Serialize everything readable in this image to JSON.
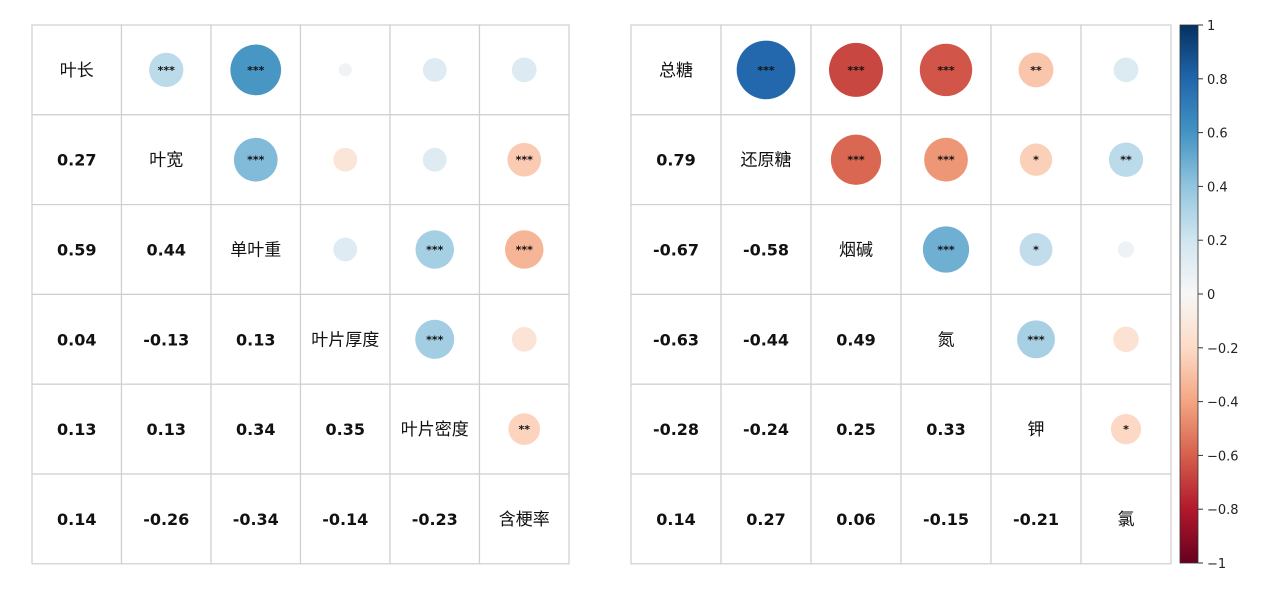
{
  "chart_data": [
    {
      "type": "heatmap",
      "variables": [
        "叶长",
        "叶宽",
        "单叶重",
        "叶片厚度",
        "叶片密度",
        "含梗率"
      ],
      "correlations": [
        [
          1,
          0.27,
          0.59,
          0.04,
          0.13,
          0.14
        ],
        [
          0.27,
          1,
          0.44,
          -0.13,
          0.13,
          -0.26
        ],
        [
          0.59,
          0.44,
          1,
          0.13,
          0.34,
          -0.34
        ],
        [
          0.04,
          -0.13,
          0.13,
          1,
          0.35,
          -0.14
        ],
        [
          0.13,
          0.13,
          0.34,
          0.35,
          1,
          -0.23
        ],
        [
          0.14,
          -0.26,
          -0.34,
          -0.14,
          -0.23,
          1
        ]
      ],
      "lower_labels": [
        [],
        [
          "0.27"
        ],
        [
          "0.59",
          "0.44"
        ],
        [
          "0.04",
          "-0.13",
          "0.13"
        ],
        [
          "0.13",
          "0.13",
          "0.34",
          "0.35"
        ],
        [
          "0.14",
          "-0.26",
          "-0.34",
          "-0.14",
          "-0.23"
        ]
      ],
      "significance": [
        [
          "",
          "***",
          "***",
          "",
          "",
          ""
        ],
        [
          "",
          "",
          "***",
          "",
          "",
          "***"
        ],
        [
          "",
          "",
          "",
          "",
          "***",
          "***"
        ],
        [
          "",
          "",
          "",
          "",
          "***",
          ""
        ],
        [
          "",
          "",
          "",
          "",
          "",
          "**"
        ],
        [
          "",
          "",
          "",
          "",
          "",
          ""
        ]
      ]
    },
    {
      "type": "heatmap",
      "variables": [
        "总糖",
        "还原糖",
        "烟碱",
        "氮",
        "钾",
        "氯"
      ],
      "correlations": [
        [
          1,
          0.79,
          -0.67,
          -0.63,
          -0.28,
          0.14
        ],
        [
          0.79,
          1,
          -0.58,
          -0.44,
          -0.24,
          0.27
        ],
        [
          -0.67,
          -0.58,
          1,
          0.49,
          0.25,
          0.06
        ],
        [
          -0.63,
          -0.44,
          0.49,
          1,
          0.33,
          -0.15
        ],
        [
          -0.28,
          -0.24,
          0.25,
          0.33,
          1,
          -0.21
        ],
        [
          0.14,
          0.27,
          0.06,
          -0.15,
          -0.21,
          1
        ]
      ],
      "lower_labels": [
        [],
        [
          "0.79"
        ],
        [
          "-0.67",
          "-0.58"
        ],
        [
          "-0.63",
          "-0.44",
          "0.49"
        ],
        [
          "-0.28",
          "-0.24",
          "0.25",
          "0.33"
        ],
        [
          "0.14",
          "0.27",
          "0.06",
          "-0.15",
          "-0.21"
        ]
      ],
      "significance": [
        [
          "",
          "***",
          "***",
          "***",
          "**",
          ""
        ],
        [
          "",
          "",
          "***",
          "***",
          "*",
          "**"
        ],
        [
          "",
          "",
          "",
          "***",
          "*",
          ""
        ],
        [
          "",
          "",
          "",
          "",
          "***",
          ""
        ],
        [
          "",
          "",
          "",
          "",
          "",
          "*"
        ],
        [
          "",
          "",
          "",
          "",
          "",
          ""
        ]
      ]
    }
  ],
  "colorbar": {
    "ticks": [
      "1",
      "0.8",
      "0.6",
      "0.4",
      "0.2",
      "0",
      "−0.2",
      "−0.4",
      "−0.6",
      "−0.8",
      "−1"
    ],
    "range": [
      -1,
      1
    ],
    "colormap": [
      "#67001f",
      "#b2182b",
      "#d6604d",
      "#f4a582",
      "#fddbc7",
      "#f7f7f7",
      "#d1e5f0",
      "#92c5de",
      "#4393c3",
      "#2166ac",
      "#053061"
    ]
  },
  "colors": {
    "grid": "#cfcfcf",
    "text": "#111111"
  }
}
